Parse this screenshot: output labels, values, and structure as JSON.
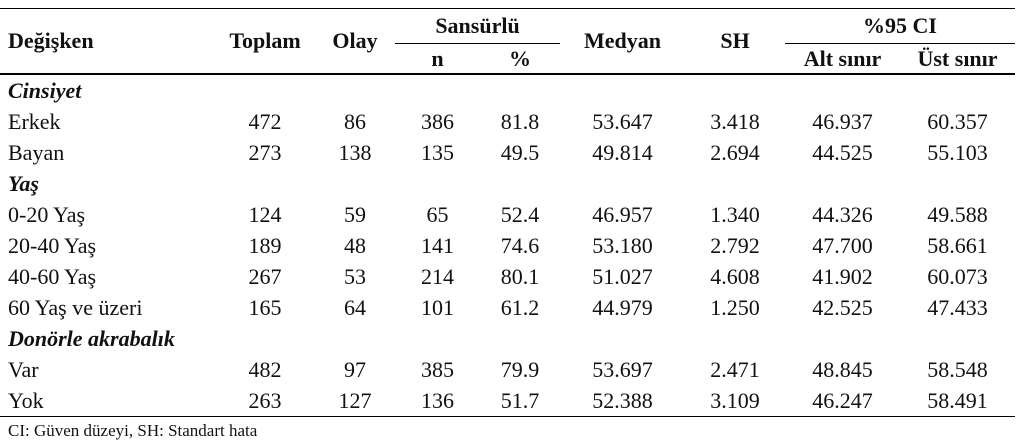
{
  "table": {
    "header": {
      "variable": "Değişken",
      "total": "Toplam",
      "event": "Olay",
      "censored": "Sansürlü",
      "n": "n",
      "percent": "%",
      "median": "Medyan",
      "se": "SH",
      "ci": "%95 CI",
      "lower": "Alt sınır",
      "upper": "Üst sınır"
    },
    "groups": [
      {
        "label": "Cinsiyet",
        "rows": [
          [
            "Erkek",
            "472",
            "86",
            "386",
            "81.8",
            "53.647",
            "3.418",
            "46.937",
            "60.357"
          ],
          [
            "Bayan",
            "273",
            "138",
            "135",
            "49.5",
            "49.814",
            "2.694",
            "44.525",
            "55.103"
          ]
        ]
      },
      {
        "label": "Yaş",
        "rows": [
          [
            "0-20 Yaş",
            "124",
            "59",
            "65",
            "52.4",
            "46.957",
            "1.340",
            "44.326",
            "49.588"
          ],
          [
            "20-40 Yaş",
            "189",
            "48",
            "141",
            "74.6",
            "53.180",
            "2.792",
            "47.700",
            "58.661"
          ],
          [
            "40-60 Yaş",
            "267",
            "53",
            "214",
            "80.1",
            "51.027",
            "4.608",
            "41.902",
            "60.073"
          ],
          [
            "60 Yaş ve üzeri",
            "165",
            "64",
            "101",
            "61.2",
            "44.979",
            "1.250",
            "42.525",
            "47.433"
          ]
        ]
      },
      {
        "label": "Donörle akrabalık",
        "rows": [
          [
            "Var",
            "482",
            "97",
            "385",
            "79.9",
            "53.697",
            "2.471",
            "48.845",
            "58.548"
          ],
          [
            "Yok",
            "263",
            "127",
            "136",
            "51.7",
            "52.388",
            "3.109",
            "46.247",
            "58.491"
          ]
        ]
      }
    ]
  },
  "footnote": "CI: Güven düzeyi, SH: Standart hata"
}
